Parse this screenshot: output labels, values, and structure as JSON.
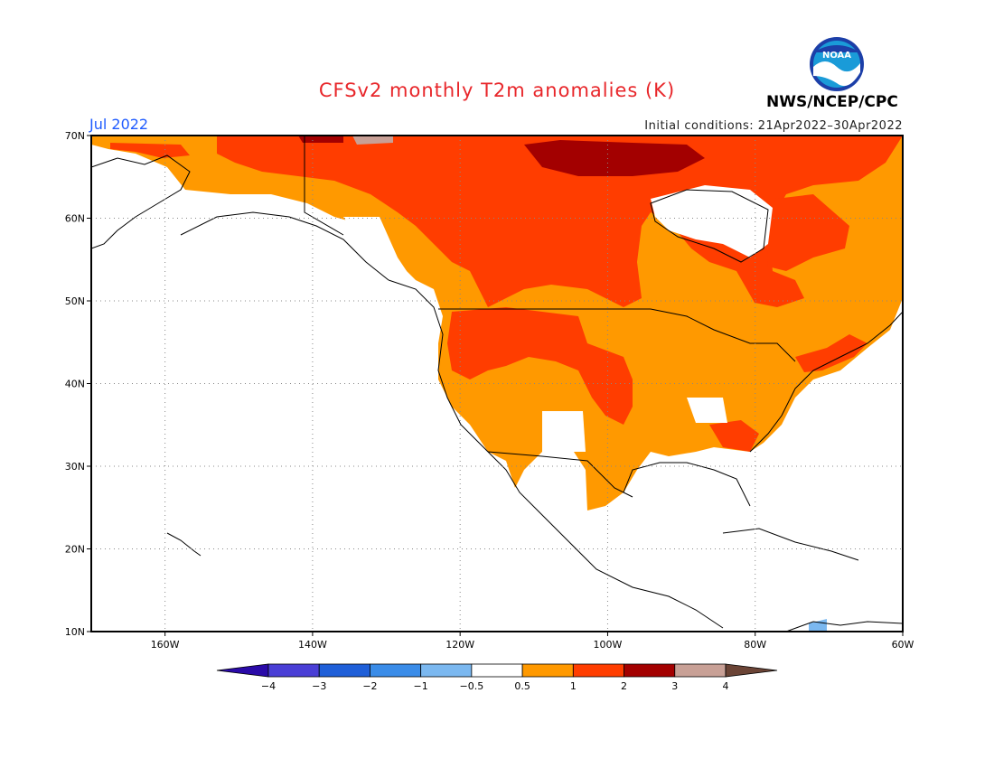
{
  "title": "CFSv2 monthly T2m anomalies (K)",
  "month": "Jul 2022",
  "initial_conditions": "Initial conditions: 21Apr2022–30Apr2022",
  "agency": "NWS/NCEP/CPC",
  "logo": {
    "text": "NOAA",
    "colors": {
      "ring": "#1c3fa8",
      "sky": "#1a9bd8",
      "wave": "#ffffff"
    }
  },
  "map": {
    "lat_range": [
      10,
      70
    ],
    "lon_range": [
      -170,
      -60
    ],
    "lat_ticks": [
      {
        "value": 70,
        "label": "70N"
      },
      {
        "value": 60,
        "label": "60N"
      },
      {
        "value": 50,
        "label": "50N"
      },
      {
        "value": 40,
        "label": "40N"
      },
      {
        "value": 30,
        "label": "30N"
      },
      {
        "value": 20,
        "label": "20N"
      },
      {
        "value": 10,
        "label": "10N"
      }
    ],
    "lon_ticks": [
      {
        "value": -160,
        "label": "160W"
      },
      {
        "value": -140,
        "label": "140W"
      },
      {
        "value": -120,
        "label": "120W"
      },
      {
        "value": -100,
        "label": "100W"
      },
      {
        "value": -80,
        "label": "80W"
      },
      {
        "value": -60,
        "label": "60W"
      }
    ],
    "gridlines": true
  },
  "colorbar": {
    "bins": [
      {
        "color": "#2a0aa8"
      },
      {
        "color": "#4a3fd6",
        "label": "−4"
      },
      {
        "color": "#1f5fd8",
        "label": "−3"
      },
      {
        "color": "#3a8ce8",
        "label": "−2"
      },
      {
        "color": "#7bb8f0",
        "label": "−1"
      },
      {
        "color": "#ffffff",
        "label": "−0.5"
      },
      {
        "color": "#ff9900",
        "label": "0.5"
      },
      {
        "color": "#ff3d00",
        "label": "1"
      },
      {
        "color": "#a30000",
        "label": "2"
      },
      {
        "color": "#c8a096",
        "label": "3"
      },
      {
        "color": "#6b4436",
        "label": "4"
      }
    ]
  }
}
